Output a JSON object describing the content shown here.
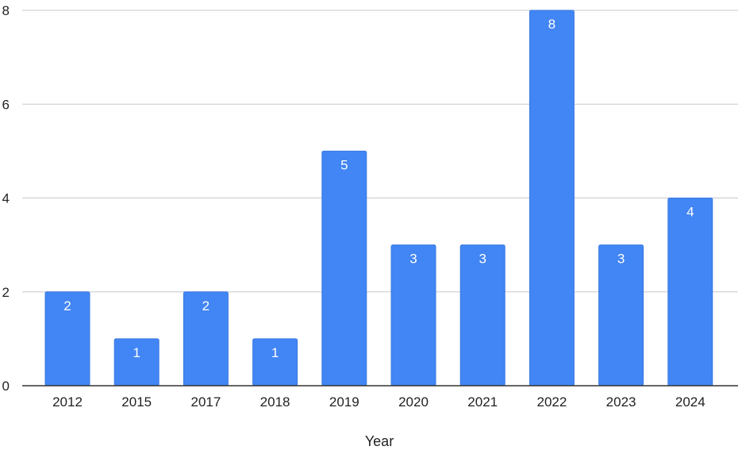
{
  "colors": {
    "bar": "#4285f4",
    "bar_stroke": "#3a78e0",
    "grid": "#c8c8c8",
    "axis": "#333333",
    "data_label": "#ffffff"
  },
  "chart_data": {
    "type": "bar",
    "title": "",
    "xlabel": "Year",
    "ylabel": "",
    "categories": [
      "2012",
      "2015",
      "2017",
      "2018",
      "2019",
      "2020",
      "2021",
      "2022",
      "2023",
      "2024"
    ],
    "values": [
      2,
      1,
      2,
      1,
      5,
      3,
      3,
      8,
      3,
      4
    ],
    "ylim": [
      0,
      8
    ],
    "yticks": [
      0,
      2,
      4,
      6,
      8
    ],
    "grid": true,
    "legend": "none",
    "data_labels": true
  }
}
